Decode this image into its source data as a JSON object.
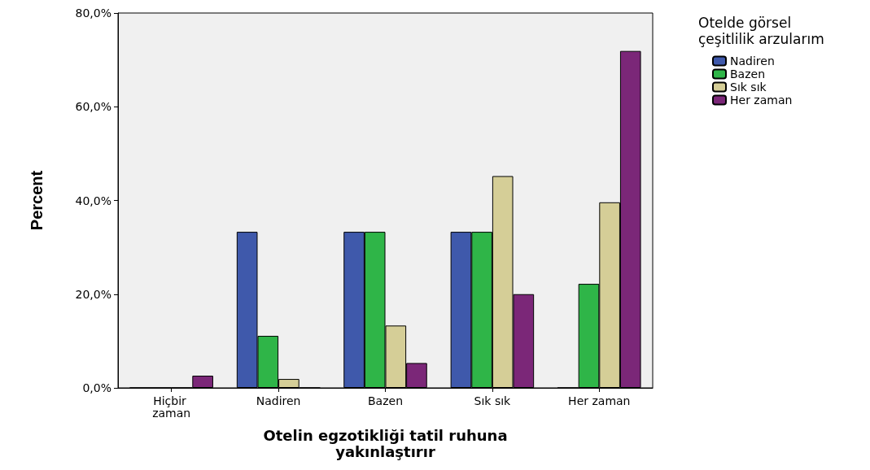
{
  "chart_data": {
    "type": "bar",
    "xlabel": "Otelin egzotikliği tatil ruhuna\nyakınlaştırır",
    "ylabel": "Percent",
    "legend_title": "Otelde görsel\nçeşitlilik arzularım",
    "categories": [
      "Hiçbir zaman",
      "Nadiren",
      "Bazen",
      "Sık sık",
      "Her zaman"
    ],
    "series": [
      {
        "name": "Nadiren",
        "color": "#3f59ab",
        "values": [
          0,
          33.3,
          33.3,
          33.3,
          0
        ]
      },
      {
        "name": "Bazen",
        "color": "#2fb548",
        "values": [
          0,
          11.1,
          33.3,
          33.3,
          22.2
        ]
      },
      {
        "name": "Sık sık",
        "color": "#d5ce97",
        "values": [
          0,
          1.9,
          13.3,
          45.2,
          39.6
        ]
      },
      {
        "name": "Her zaman",
        "color": "#7b2778",
        "values": [
          2.6,
          0,
          5.3,
          20,
          71.9
        ]
      }
    ],
    "ylim": [
      0,
      80
    ],
    "yticks": [
      {
        "value": 0,
        "label": "0,0%"
      },
      {
        "value": 20,
        "label": "20,0%"
      },
      {
        "value": 40,
        "label": "40,0%"
      },
      {
        "value": 60,
        "label": "60,0%"
      },
      {
        "value": 80,
        "label": "80,0%"
      }
    ],
    "grid": false,
    "legend": "top right"
  }
}
